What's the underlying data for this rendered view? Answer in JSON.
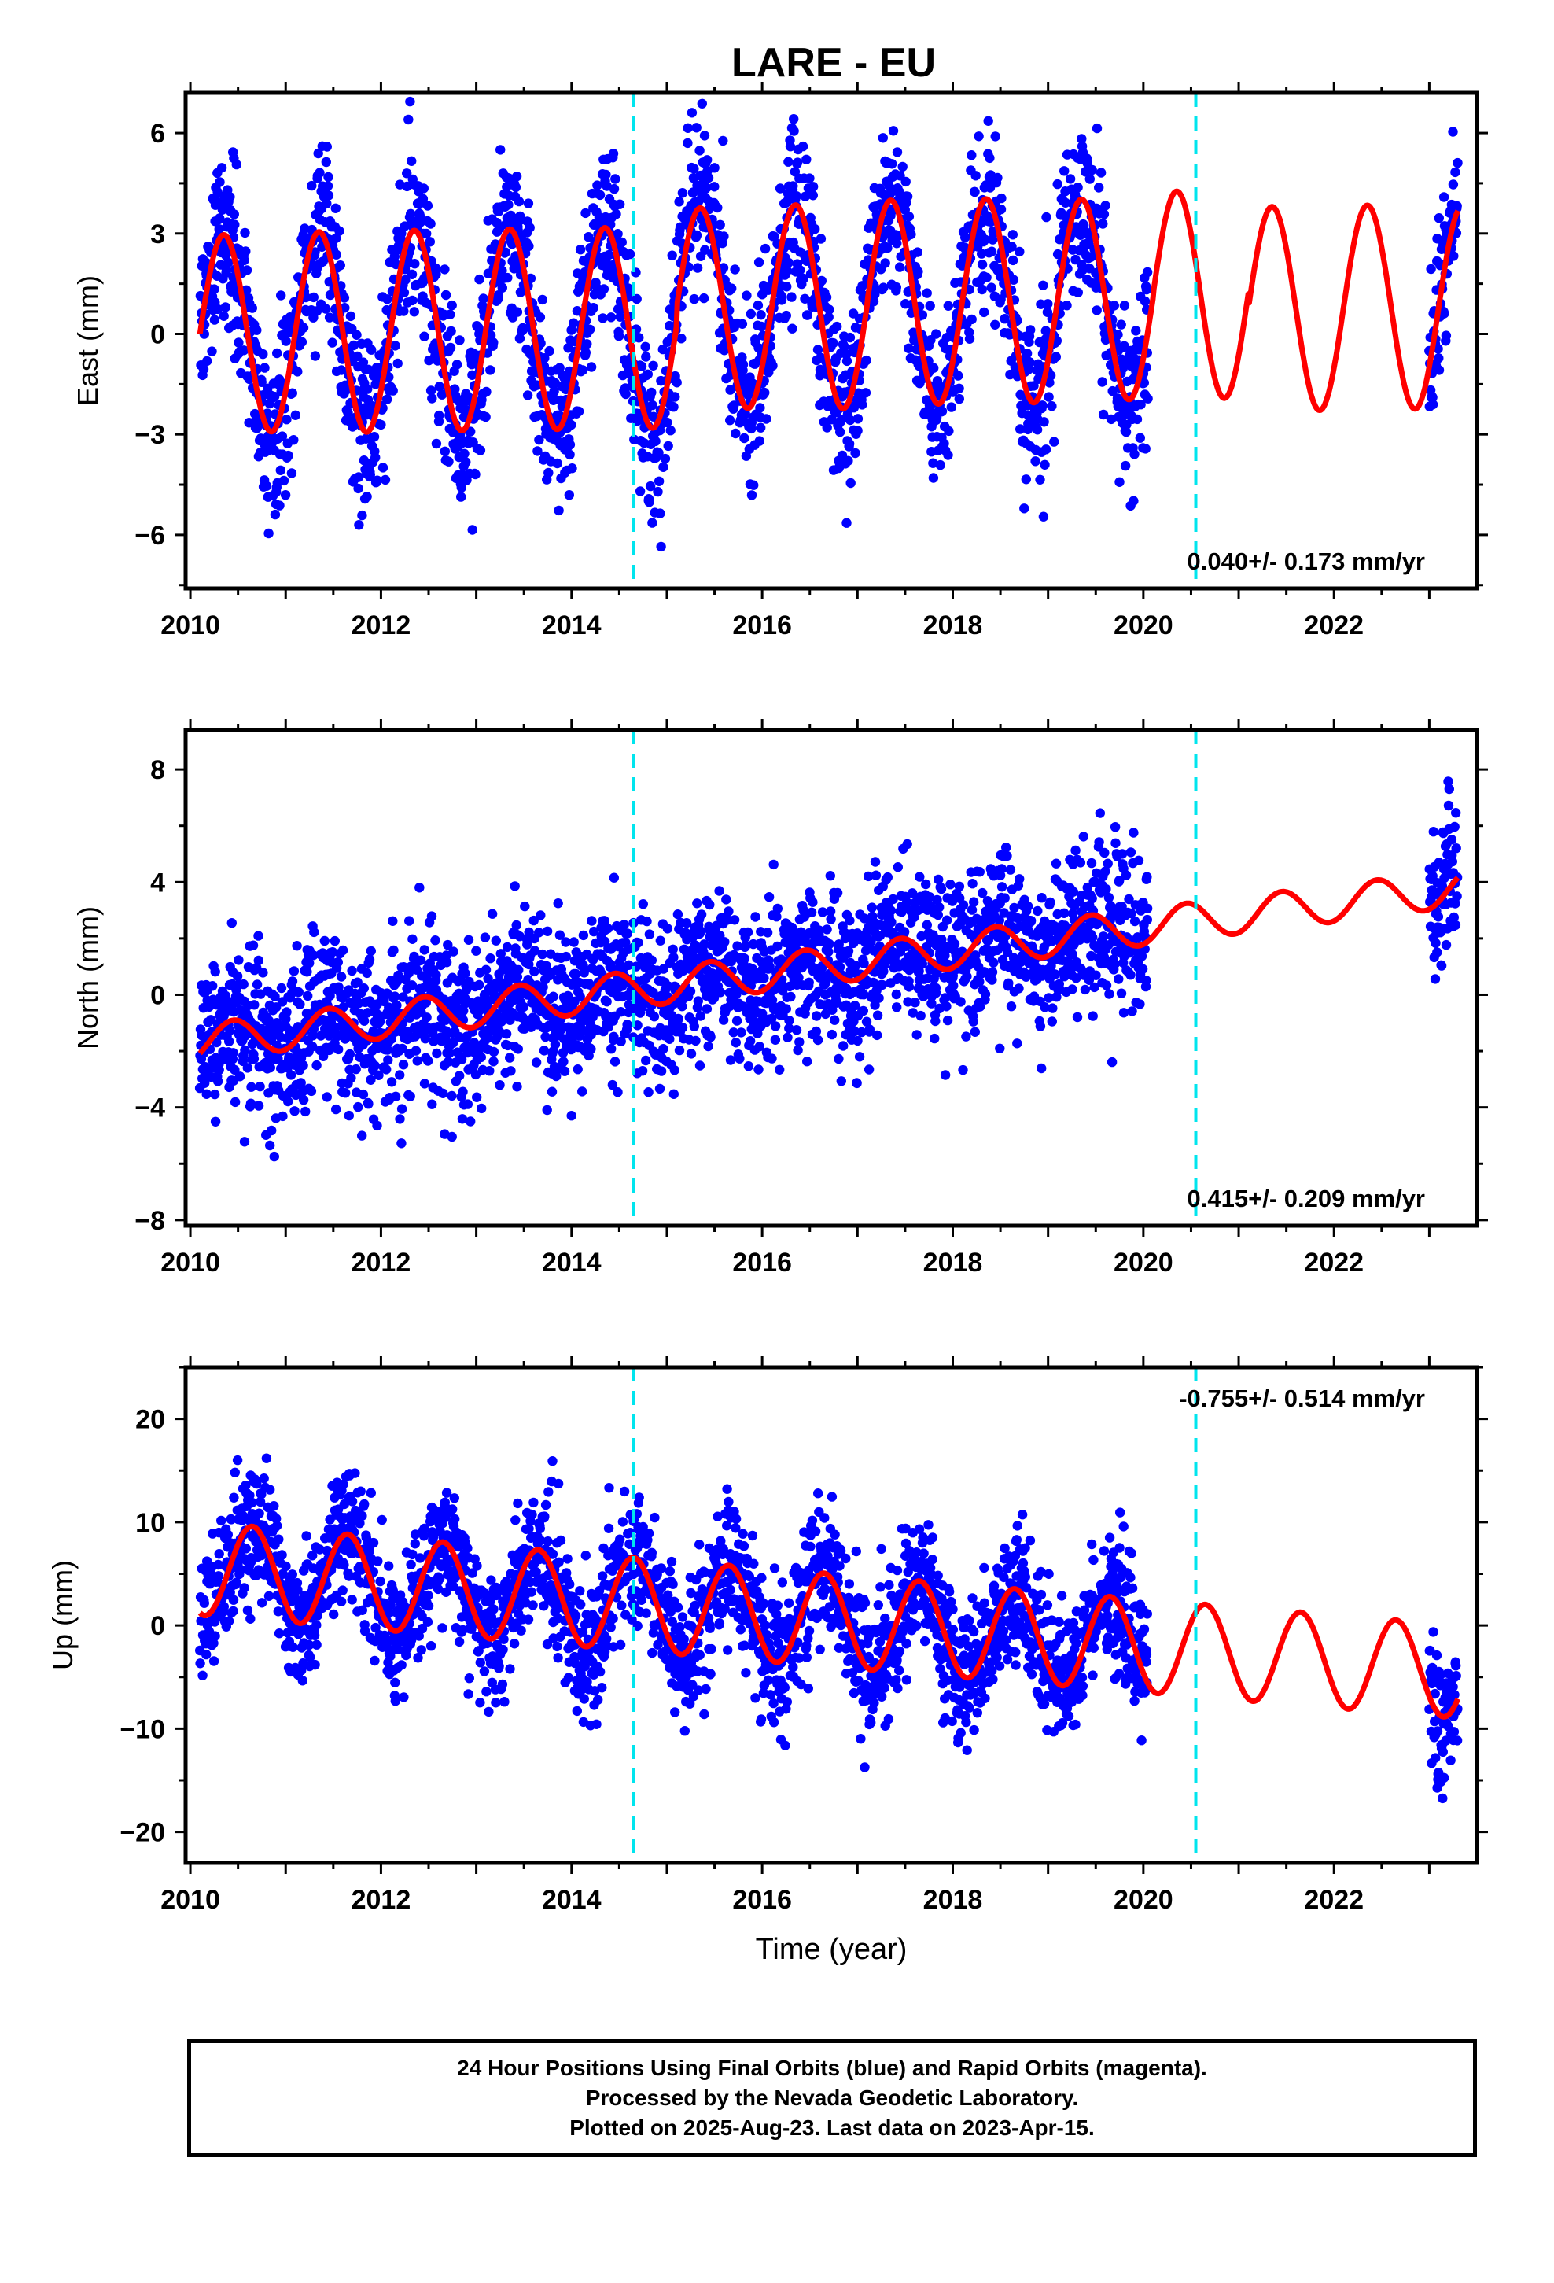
{
  "title": "LARE - EU",
  "colors": {
    "data": "#0000ff",
    "model": "#ff0000",
    "breaks": "#00e5ee"
  },
  "caption": {
    "line1": "24 Hour Positions Using Final Orbits (blue) and Rapid Orbits (magenta).",
    "line2": "Processed by the Nevada Geodetic Laboratory.",
    "line3": "Plotted on 2025-Aug-23. Last data on 2023-Apr-15."
  },
  "chart_data": [
    {
      "type": "scatter",
      "ylabel": "East (mm)",
      "xlabel": "",
      "xlim": [
        2009.95,
        2023.5
      ],
      "ylim": [
        -7.6,
        7.2
      ],
      "xticks": [
        "2010",
        "2012",
        "2014",
        "2016",
        "2018",
        "2020",
        "2022"
      ],
      "yticks": [
        "6",
        "3",
        "0",
        "−3",
        "−6"
      ],
      "ytick_values": [
        6,
        3,
        0,
        -3,
        -6
      ],
      "rate": "0.040+/- 0.173 mm/yr",
      "rate_position": "bottom-right",
      "breaks": [
        2014.65,
        2020.55
      ],
      "model": {
        "offset": 0.0,
        "trend": 0.04,
        "amplitude": [
          2.95,
          3.0,
          3.0,
          3.0,
          3.0,
          3.0,
          3.05,
          3.05,
          3.05,
          3.0,
          3.1,
          3.05,
          3.05,
          3.0
        ],
        "mean_shift": [
          0.0,
          0.0,
          0.0,
          0.0,
          0.0,
          0.55,
          0.55,
          0.65,
          0.65,
          0.65,
          0.75,
          0.3,
          0.3,
          0.3
        ],
        "peak_phase": 0.35
      },
      "data_ranges": [
        [
          2010.1,
          2020.05
        ],
        [
          2023.0,
          2023.3
        ]
      ],
      "scatter_sd": 1.25
    },
    {
      "type": "scatter",
      "ylabel": "North (mm)",
      "xlabel": "",
      "xlim": [
        2009.95,
        2023.5
      ],
      "ylim": [
        -8.2,
        9.4
      ],
      "xticks": [
        "2010",
        "2012",
        "2014",
        "2016",
        "2018",
        "2020",
        "2022"
      ],
      "yticks": [
        "8",
        "4",
        "0",
        "−4",
        "−8"
      ],
      "ytick_values": [
        8,
        4,
        0,
        -4,
        -8
      ],
      "rate": "0.415+/- 0.209 mm/yr",
      "rate_position": "bottom-right",
      "breaks": [
        2014.65,
        2020.55
      ],
      "model": {
        "start": -1.7,
        "trend": 0.415,
        "amplitude": 0.65,
        "peak_phase": 0.45
      },
      "data_ranges": [
        [
          2010.1,
          2020.05
        ],
        [
          2023.0,
          2023.3
        ]
      ],
      "scatter_sd": 1.35
    },
    {
      "type": "scatter",
      "ylabel": "Up (mm)",
      "xlabel": "Time (year)",
      "xlim": [
        2009.95,
        2023.5
      ],
      "ylim": [
        -23,
        25
      ],
      "xticks": [
        "2010",
        "2012",
        "2014",
        "2016",
        "2018",
        "2020",
        "2022"
      ],
      "yticks": [
        "20",
        "10",
        "0",
        "−10",
        "−20"
      ],
      "ytick_values": [
        20,
        10,
        0,
        -10,
        -20
      ],
      "rate": "-0.755+/- 0.514 mm/yr",
      "rate_position": "top-right",
      "breaks": [
        2014.65,
        2020.55
      ],
      "model": {
        "start": 5.5,
        "trend": -0.755,
        "amplitude": 4.5,
        "peak_phase": 0.65
      },
      "data_ranges": [
        [
          2010.1,
          2020.05
        ],
        [
          2023.0,
          2023.3
        ]
      ],
      "scatter_sd": 3.2
    }
  ]
}
